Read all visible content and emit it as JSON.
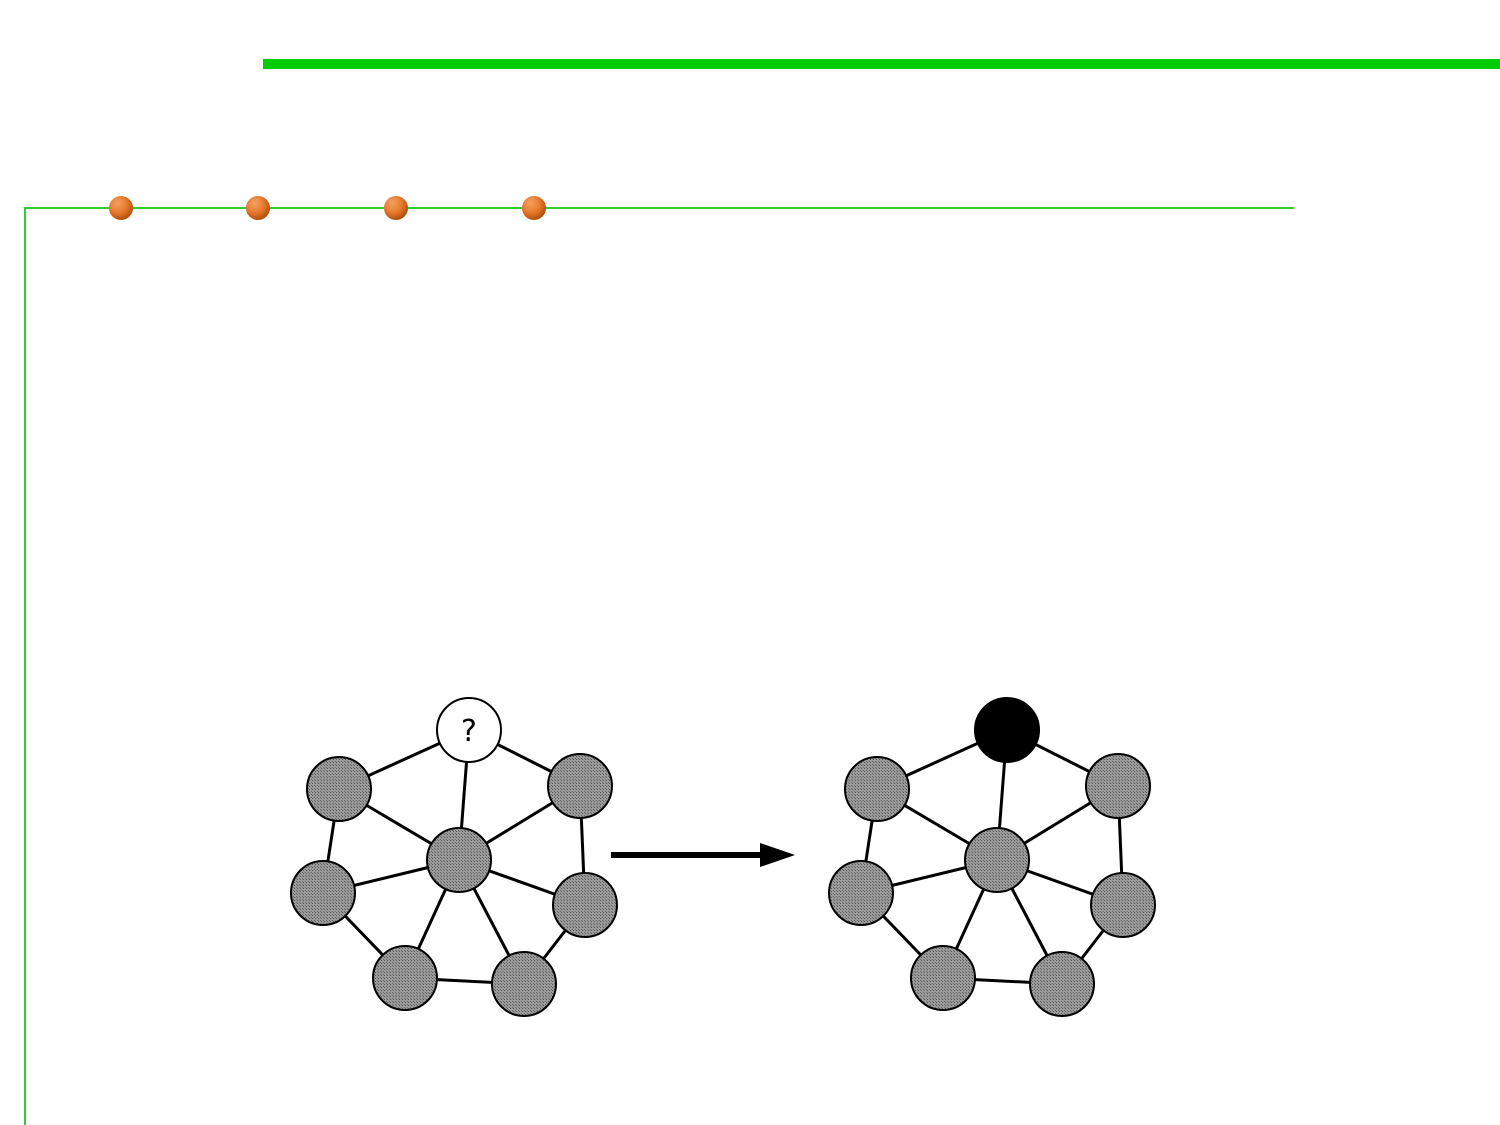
{
  "colors": {
    "accent_green": "#00cc00",
    "frame_green": "#33cc33",
    "bead_orange": "#e07020",
    "node_gray": "#8c8c8c",
    "node_black": "#000000",
    "unknown_fill": "#ffffff",
    "edge": "#000000"
  },
  "decorations": {
    "bead_count": 4
  },
  "diagram": {
    "unknown_node_label": "?",
    "arrow_icon": "right-arrow-icon"
  }
}
